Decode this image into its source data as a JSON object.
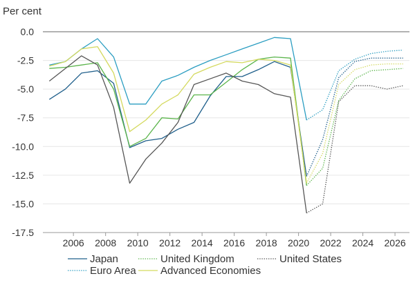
{
  "chart_data": {
    "type": "line",
    "title": "",
    "ylabel": "Per cent",
    "xlabel": "",
    "xlim": [
      2004.1,
      2026.9
    ],
    "ylim": [
      -17.5,
      0
    ],
    "x_ticks": [
      2006,
      2008,
      2010,
      2012,
      2014,
      2016,
      2018,
      2020,
      2022,
      2024,
      2026
    ],
    "x_tick_labels": [
      "2006",
      "2008",
      "2010",
      "2012",
      "2014",
      "2016",
      "2018",
      "2020",
      "2022",
      "2024",
      "2026"
    ],
    "y_ticks": [
      0,
      -2.5,
      -5,
      -7.5,
      -10,
      -12.5,
      -15,
      -17.5
    ],
    "y_tick_labels": [
      "0.0",
      "-2.5",
      "-5.0",
      "-7.5",
      "-10.0",
      "-12.5",
      "-15.0",
      "-17.5"
    ],
    "forecast_start": 2020.5,
    "series": [
      {
        "name": "Japan",
        "color": "#1f5f8b",
        "x": [
          2004.5,
          2005.5,
          2006.5,
          2007.5,
          2008.5,
          2009.5,
          2010.5,
          2011.5,
          2012.5,
          2013.5,
          2014.5,
          2015.5,
          2016.5,
          2017.5,
          2018.5,
          2019.5,
          2020.5
        ],
        "values": [
          -5.9,
          -5.0,
          -3.6,
          -3.4,
          -4.5,
          -10.1,
          -9.5,
          -9.3,
          -8.5,
          -7.9,
          -5.6,
          -3.9,
          -3.9,
          -3.3,
          -2.6,
          -3.1,
          -12.6
        ],
        "forecast_x": [
          2020.5,
          2021.5,
          2022.5,
          2023.5,
          2024.5,
          2025.5,
          2026.5
        ],
        "forecast_values": [
          -12.6,
          -9.4,
          -4.0,
          -2.6,
          -2.3,
          -2.3,
          -2.3
        ]
      },
      {
        "name": "United Kingdom",
        "color": "#5ab44a",
        "x": [
          2004.5,
          2005.5,
          2006.5,
          2007.5,
          2008.5,
          2009.5,
          2010.5,
          2011.5,
          2012.5,
          2013.5,
          2014.5,
          2015.5,
          2016.5,
          2017.5,
          2018.5,
          2019.5,
          2020.5
        ],
        "values": [
          -3.2,
          -3.1,
          -2.9,
          -2.7,
          -5.0,
          -10.0,
          -9.3,
          -7.5,
          -7.6,
          -5.5,
          -5.5,
          -4.4,
          -3.3,
          -2.4,
          -2.2,
          -2.3,
          -13.4
        ],
        "forecast_x": [
          2020.5,
          2021.5,
          2022.5,
          2023.5,
          2024.5,
          2025.5,
          2026.5
        ],
        "forecast_values": [
          -13.4,
          -11.9,
          -6.0,
          -4.1,
          -3.4,
          -3.3,
          -3.2
        ]
      },
      {
        "name": "United States",
        "color": "#555555",
        "x": [
          2004.5,
          2005.5,
          2006.5,
          2007.5,
          2008.5,
          2009.5,
          2010.5,
          2011.5,
          2012.5,
          2013.5,
          2014.5,
          2015.5,
          2016.5,
          2017.5,
          2018.5,
          2019.5,
          2020.5
        ],
        "values": [
          -4.3,
          -3.2,
          -2.1,
          -2.9,
          -6.6,
          -13.2,
          -11.1,
          -9.7,
          -7.9,
          -4.6,
          -4.1,
          -3.6,
          -4.3,
          -4.6,
          -5.4,
          -5.7,
          -15.8
        ],
        "forecast_x": [
          2020.5,
          2021.5,
          2022.5,
          2023.5,
          2024.5,
          2025.5,
          2026.5
        ],
        "forecast_values": [
          -15.8,
          -15.0,
          -6.1,
          -4.7,
          -4.7,
          -5.0,
          -4.7
        ]
      },
      {
        "name": "Euro Area",
        "color": "#2a9dc1",
        "x": [
          2004.5,
          2005.5,
          2006.5,
          2007.5,
          2008.5,
          2009.5,
          2010.5,
          2011.5,
          2012.5,
          2013.5,
          2014.5,
          2015.5,
          2016.5,
          2017.5,
          2018.5,
          2019.5,
          2020.5
        ],
        "values": [
          -2.9,
          -2.6,
          -1.5,
          -0.6,
          -2.2,
          -6.3,
          -6.3,
          -4.3,
          -3.8,
          -3.1,
          -2.5,
          -2.0,
          -1.5,
          -1.0,
          -0.5,
          -0.6,
          -7.7
        ],
        "forecast_x": [
          2020.5,
          2021.5,
          2022.5,
          2023.5,
          2024.5,
          2025.5,
          2026.5
        ],
        "forecast_values": [
          -7.7,
          -6.8,
          -3.4,
          -2.4,
          -1.9,
          -1.7,
          -1.6
        ]
      },
      {
        "name": "Advanced Economies",
        "color": "#d4d95e",
        "x": [
          2004.5,
          2005.5,
          2006.5,
          2007.5,
          2008.5,
          2009.5,
          2010.5,
          2011.5,
          2012.5,
          2013.5,
          2014.5,
          2015.5,
          2016.5,
          2017.5,
          2018.5,
          2019.5,
          2020.5
        ],
        "values": [
          -3.0,
          -2.6,
          -1.5,
          -1.3,
          -3.6,
          -8.7,
          -7.7,
          -6.3,
          -5.5,
          -3.7,
          -3.1,
          -2.6,
          -2.7,
          -2.4,
          -2.5,
          -2.9,
          -13.2
        ],
        "forecast_x": [
          2020.5,
          2021.5,
          2022.5,
          2023.5,
          2024.5,
          2025.5,
          2026.5
        ],
        "forecast_values": [
          -13.2,
          -10.6,
          -4.6,
          -3.3,
          -2.9,
          -2.8,
          -2.8
        ]
      }
    ],
    "legend": {
      "placement": "bottom",
      "entries": [
        {
          "label": "Japan",
          "color": "#1f5f8b",
          "style": "solid"
        },
        {
          "label": "United Kingdom",
          "color": "#5ab44a",
          "style": "dotted"
        },
        {
          "label": "United States",
          "color": "#555555",
          "style": "dotted"
        },
        {
          "label": "Euro Area",
          "color": "#2a9dc1",
          "style": "dotted"
        },
        {
          "label": "Advanced Economies",
          "color": "#d4d95e",
          "style": "solid"
        }
      ]
    }
  }
}
